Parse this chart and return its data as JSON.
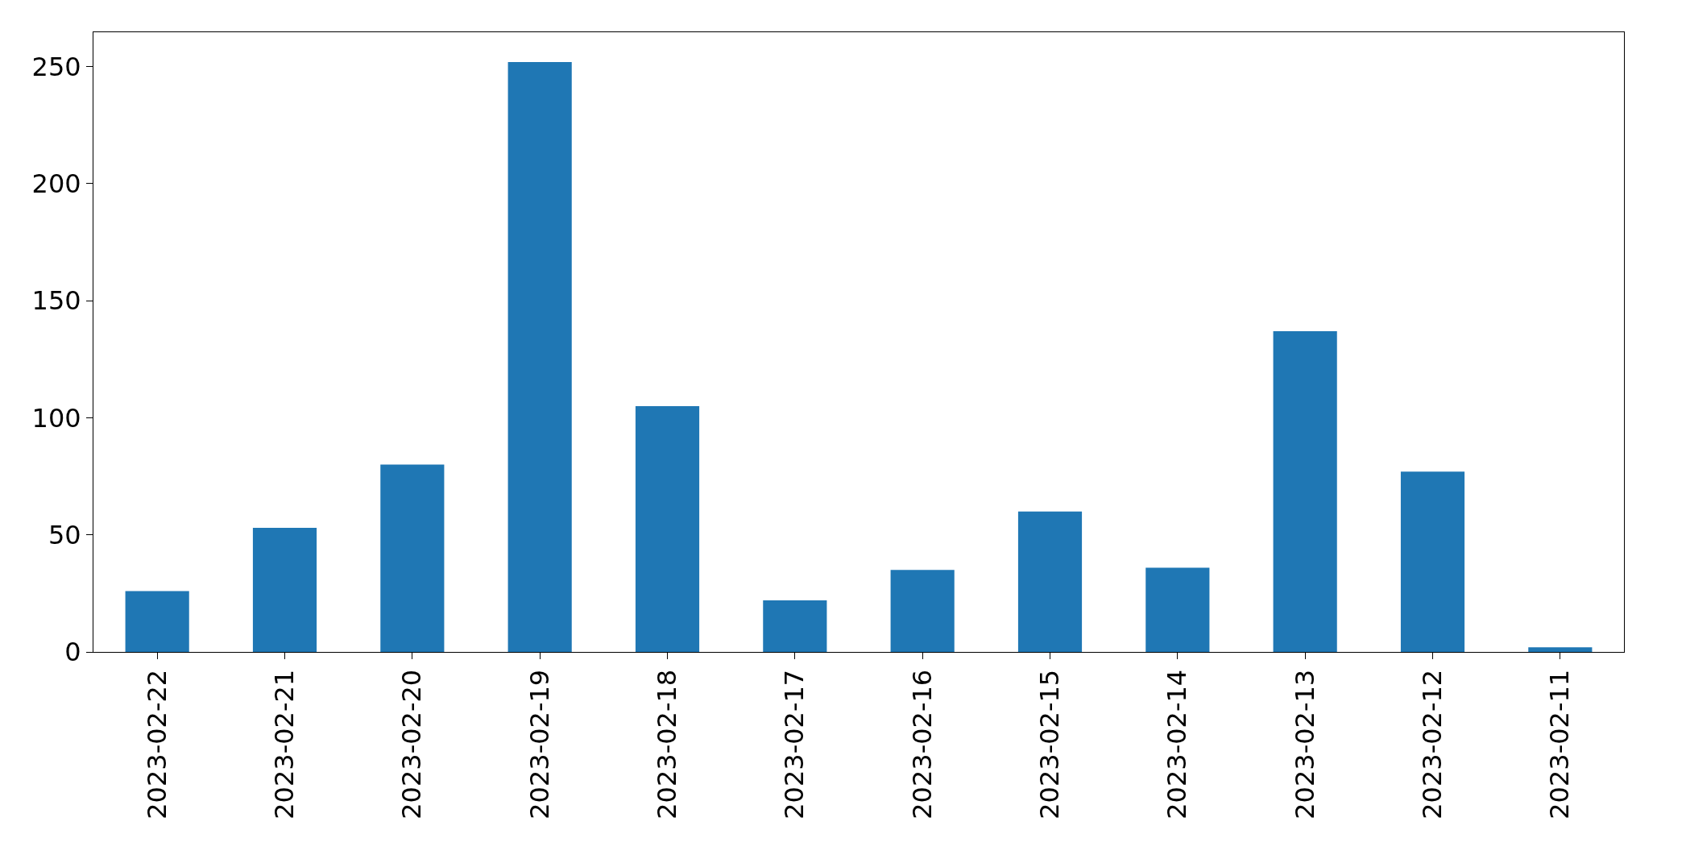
{
  "chart_data": {
    "type": "bar",
    "categories": [
      "2023-02-22",
      "2023-02-21",
      "2023-02-20",
      "2023-02-19",
      "2023-02-18",
      "2023-02-17",
      "2023-02-16",
      "2023-02-15",
      "2023-02-14",
      "2023-02-13",
      "2023-02-12",
      "2023-02-11"
    ],
    "values": [
      26,
      53,
      80,
      252,
      105,
      22,
      35,
      60,
      36,
      137,
      77,
      2
    ],
    "color": "#1f77b4",
    "ylim": [
      0,
      264.7
    ],
    "yticks": [
      0,
      50,
      100,
      150,
      200,
      250
    ]
  }
}
